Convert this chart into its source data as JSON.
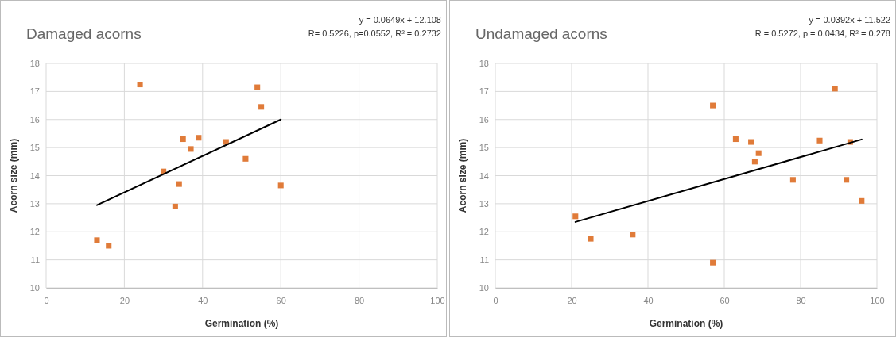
{
  "chart_data": [
    {
      "type": "scatter",
      "title": "Damaged acorns",
      "xlabel": "Germination (%)",
      "ylabel": "Acorn size (mm)",
      "marker": "square",
      "grid": true,
      "annotations": [
        "y = 0.0649x + 12.108",
        "R= 0.5226, p=0.0552, R² = 0.2732"
      ],
      "xlim": [
        0,
        100
      ],
      "xticks": [
        0,
        20,
        40,
        60,
        80,
        100
      ],
      "ylim": [
        10,
        18
      ],
      "yticks": [
        10,
        11,
        12,
        13,
        14,
        15,
        16,
        17,
        18
      ],
      "series": [
        {
          "color": "#e07b39",
          "x": [
            13,
            16,
            24,
            30,
            33,
            34,
            35,
            37,
            39,
            46,
            51,
            54,
            55,
            60
          ],
          "values": [
            11.7,
            11.5,
            17.25,
            14.15,
            12.9,
            13.7,
            15.3,
            14.95,
            15.35,
            15.2,
            14.6,
            17.15,
            16.45,
            13.65
          ]
        },
        {
          "type": "line",
          "marker": "none",
          "color": "#000000",
          "x": [
            13,
            60
          ],
          "values": [
            12.95,
            16.0
          ]
        }
      ]
    },
    {
      "type": "scatter",
      "title": "Undamaged acorns",
      "xlabel": "Germination (%)",
      "ylabel": "Acorn size (mm)",
      "marker": "square",
      "grid": true,
      "annotations": [
        "y = 0.0392x + 11.522",
        "R = 0.5272, p = 0.0434, R² = 0.278"
      ],
      "xlim": [
        0,
        100
      ],
      "xticks": [
        0,
        20,
        40,
        60,
        80,
        100
      ],
      "ylim": [
        10,
        18
      ],
      "yticks": [
        10,
        11,
        12,
        13,
        14,
        15,
        16,
        17,
        18
      ],
      "series": [
        {
          "color": "#e07b39",
          "x": [
            21,
            25,
            36,
            57,
            57,
            63,
            67,
            68,
            69,
            78,
            85,
            89,
            92,
            93,
            96
          ],
          "values": [
            12.55,
            11.75,
            11.9,
            16.5,
            10.9,
            15.3,
            15.2,
            14.5,
            14.8,
            13.85,
            15.25,
            17.1,
            13.85,
            15.2,
            13.1
          ]
        },
        {
          "type": "line",
          "marker": "none",
          "color": "#000000",
          "x": [
            21,
            96
          ],
          "values": [
            12.35,
            15.29
          ]
        }
      ]
    }
  ]
}
